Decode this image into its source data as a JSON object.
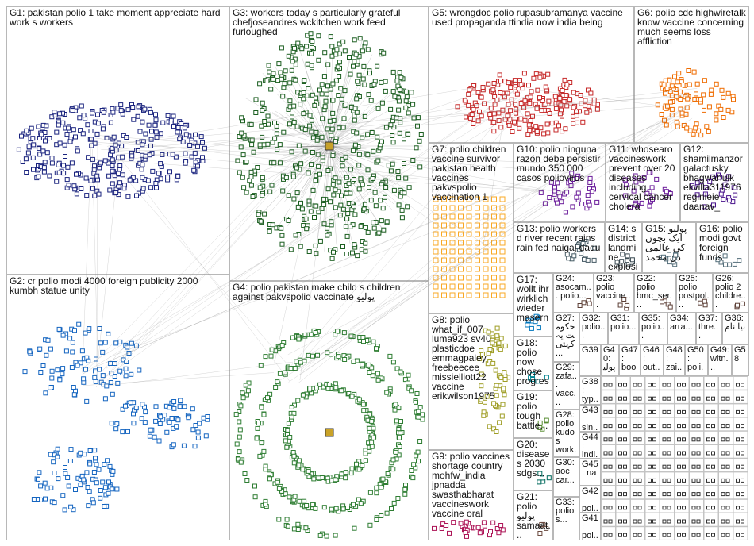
{
  "graph": {
    "groups": [
      {
        "id": "G1",
        "label": "G1: pakistan polio 1 take moment appreciate hard work s workers",
        "color": "#1a237e"
      },
      {
        "id": "G2",
        "label": "G2: cr polio modi 4000 foreign publicity 2000 kumbh statue unity",
        "color": "#1565c0"
      },
      {
        "id": "G3",
        "label": "G3: workers today s particularly grateful chefjoseandres wckitchen work feed furloughed",
        "color": "#1b5e20"
      },
      {
        "id": "G4",
        "label": "G4: polio pakistan make child s children against pakvspolio vaccinate پولیو",
        "color": "#2e7d32"
      },
      {
        "id": "G5",
        "label": "G5: wrongdoc polio rupasubramanya vaccine used propaganda ttindia now india being",
        "color": "#c62828"
      },
      {
        "id": "G6",
        "label": "G6: polio cdc highwiretalk know vaccine concerning much seems loss affliction",
        "color": "#ef6c00"
      },
      {
        "id": "G7",
        "label": "G7: polio children vaccine survivor pakistan health vaccines pakvspolio vaccination 1",
        "color": "#f9a825"
      },
      {
        "id": "G8",
        "label": "G8: polio what_if_007 luma923 sv40 plasticdoe emmagpaley freebeecee missielliott22 vaccine erikwilson1975",
        "color": "#9e9d24"
      },
      {
        "id": "G9",
        "label": "G9: polio vaccines shortage country mohfw_india jpnadda swasthabharat vaccineswork vaccine oral",
        "color": "#ad1457"
      },
      {
        "id": "G10",
        "label": "G10: polio ninguna razón deba persistir mundo 350 000 casos poliovirus",
        "color": "#6a1b9a"
      },
      {
        "id": "G11",
        "label": "G11: whosearo vaccineswork prevent over 20 diseases including cervical cancer cholera",
        "color": "#6a1b9a"
      },
      {
        "id": "G12",
        "label": "G12: shamilmanzor galactusky bhagwahulk ekvilla311976 reginieie daanav_",
        "color": "#4a148c"
      },
      {
        "id": "G13",
        "label": "G13: polio workers d river recent rains rain fed naigaj dadu",
        "color": "#455a64"
      },
      {
        "id": "G14",
        "label": "G14: s district landmine explosion mohmand",
        "color": "#37474f"
      },
      {
        "id": "G15",
        "label": "G15: پولیو ایک بچوں کی عالمی دن محمد",
        "color": "#546e7a"
      },
      {
        "id": "G16",
        "label": "G16: polio modi govt foreign funds",
        "color": "#546e7a"
      },
      {
        "id": "G17",
        "label": "G17: wollt ihr wirklich wieder masern",
        "color": "#0277bd"
      },
      {
        "id": "G18",
        "label": "G18: polio now chose progres...",
        "color": "#00838f"
      },
      {
        "id": "G19",
        "label": "G19: polio tough battle...",
        "color": "#558b2f"
      },
      {
        "id": "G20",
        "label": "G20: diseases 2030 sdgs...",
        "color": "#00695c"
      },
      {
        "id": "G21",
        "label": "G21: polio پولیو samaat...",
        "color": "#6d4c41"
      },
      {
        "id": "G22",
        "label": "G22: polio bmc_ser...",
        "color": "#5d4037"
      },
      {
        "id": "G23",
        "label": "G23: polio vaccine...",
        "color": "#5d4037"
      },
      {
        "id": "G24",
        "label": "G24: asocam... polio...",
        "color": "#5d4037"
      },
      {
        "id": "G25",
        "label": "G25: polio postpol...",
        "color": "#5d4037"
      },
      {
        "id": "G26",
        "label": "G26: polio 2 childre...",
        "color": "#5d4037"
      },
      {
        "id": "G27",
        "label": "G27: حکومت یہ کہتی...",
        "color": "#424242"
      },
      {
        "id": "G28",
        "label": "G28: polio kudos work...",
        "color": "#424242"
      },
      {
        "id": "G29",
        "label": "G29: zafa... vacc... use...",
        "color": "#424242"
      },
      {
        "id": "G30",
        "label": "G30: aoc car...",
        "color": "#424242"
      },
      {
        "id": "G31",
        "label": "G31: polio...",
        "color": "#424242"
      },
      {
        "id": "G32",
        "label": "G32: polio...",
        "color": "#424242"
      },
      {
        "id": "G33",
        "label": "G33: polio s...",
        "color": "#424242"
      },
      {
        "id": "G34",
        "label": "G34: arra...",
        "color": "#424242"
      },
      {
        "id": "G35",
        "label": "G35: polio...",
        "color": "#424242"
      },
      {
        "id": "G36",
        "label": "G36: نیا نام",
        "color": "#424242"
      },
      {
        "id": "G37",
        "label": "G37: thre...",
        "color": "#424242"
      },
      {
        "id": "G38",
        "label": "G38: typ...",
        "color": "#424242"
      },
      {
        "id": "G39",
        "label": "G39",
        "color": "#424242"
      },
      {
        "id": "G40",
        "label": "G40: پولیو",
        "color": "#424242"
      },
      {
        "id": "G41",
        "label": "G41: pol...",
        "color": "#424242"
      },
      {
        "id": "G42",
        "label": "G42: pol...",
        "color": "#424242"
      },
      {
        "id": "G43",
        "label": "G43: sin...",
        "color": "#424242"
      },
      {
        "id": "G44",
        "label": "G44: indi...",
        "color": "#424242"
      },
      {
        "id": "G45",
        "label": "G45: na",
        "color": "#424242"
      },
      {
        "id": "G46",
        "label": "G46: out...",
        "color": "#424242"
      },
      {
        "id": "G47",
        "label": "G47: boo...",
        "color": "#424242"
      },
      {
        "id": "G48",
        "label": "G48: zai...",
        "color": "#424242"
      },
      {
        "id": "G49",
        "label": "G49: witn...",
        "color": "#424242"
      },
      {
        "id": "G50",
        "label": "G50: poli...",
        "color": "#424242"
      },
      {
        "id": "G58",
        "label": "G58",
        "color": "#424242"
      }
    ]
  }
}
